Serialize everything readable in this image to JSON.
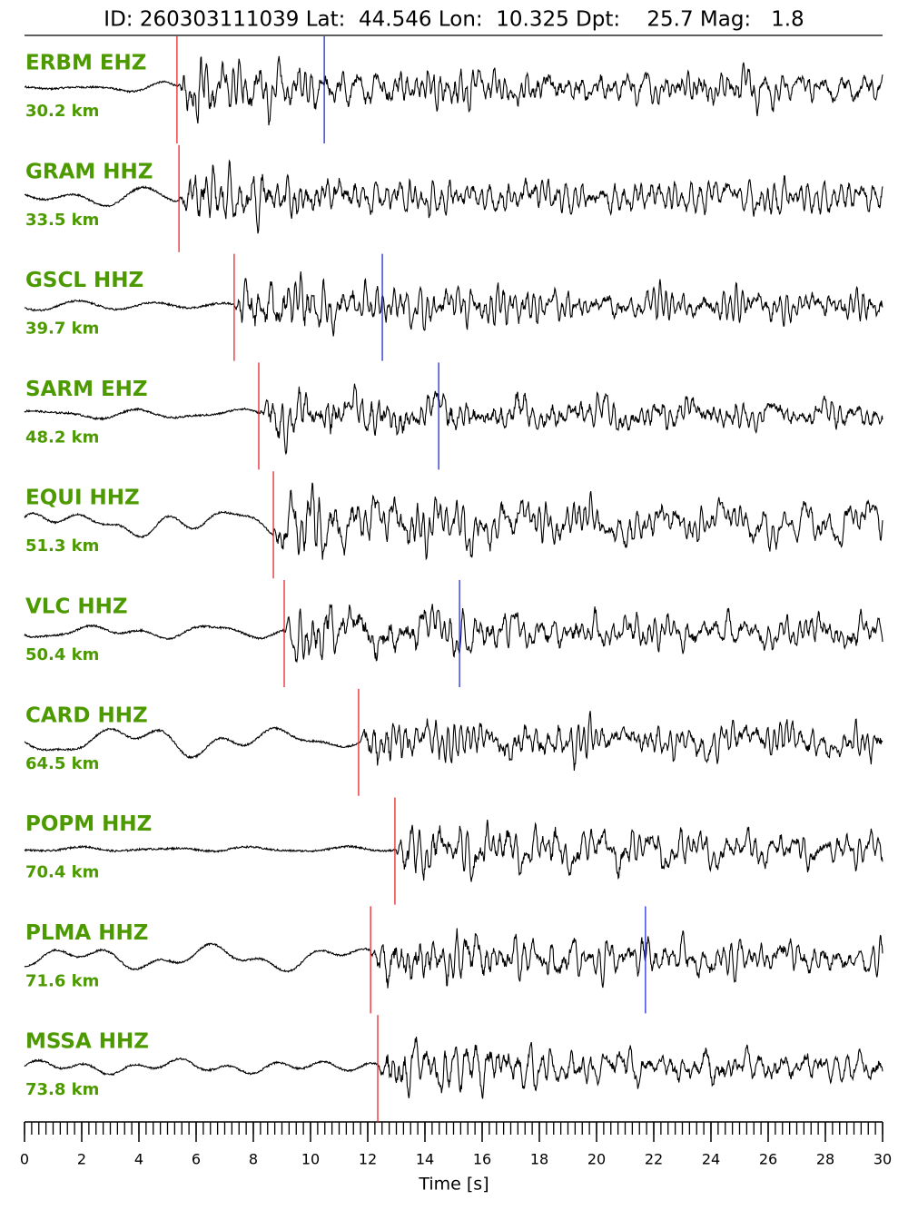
{
  "chart_data": {
    "type": "seismogram",
    "title": "ID: 260303111039 Lat:  44.546 Lon:  10.325 Dpt:    25.7 Mag:   1.8",
    "xlabel": "Time [s]",
    "xlim": [
      0,
      30
    ],
    "xticks": [
      0,
      2,
      4,
      6,
      8,
      10,
      12,
      14,
      16,
      18,
      20,
      22,
      24,
      26,
      28,
      30
    ],
    "xminor": 0.25,
    "label_color": "#4c9a00",
    "p_color": "#e8262b",
    "s_color": "#1f2fd6",
    "traces": [
      {
        "station": "ERBM EHZ",
        "distance": "30.2 km",
        "p_pick": 5.33,
        "s_pick": 10.48
      },
      {
        "station": "GRAM HHZ",
        "distance": "33.5 km",
        "p_pick": 5.4,
        "s_pick": null
      },
      {
        "station": "GSCL HHZ",
        "distance": "39.7 km",
        "p_pick": 7.33,
        "s_pick": 12.51
      },
      {
        "station": "SARM EHZ",
        "distance": "48.2 km",
        "p_pick": 8.19,
        "s_pick": 14.48
      },
      {
        "station": "EQUI HHZ",
        "distance": "51.3 km",
        "p_pick": 8.7,
        "s_pick": null
      },
      {
        "station": "VLC HHZ",
        "distance": "50.4 km",
        "p_pick": 9.08,
        "s_pick": 15.21
      },
      {
        "station": "CARD HHZ",
        "distance": "64.5 km",
        "p_pick": 11.68,
        "s_pick": null
      },
      {
        "station": "POPM HHZ",
        "distance": "70.4 km",
        "p_pick": 12.95,
        "s_pick": null
      },
      {
        "station": "PLMA HHZ",
        "distance": "71.6 km",
        "p_pick": 12.1,
        "s_pick": 21.71
      },
      {
        "station": "MSSA HHZ",
        "distance": "73.8 km",
        "p_pick": 12.35,
        "s_pick": null
      }
    ]
  }
}
